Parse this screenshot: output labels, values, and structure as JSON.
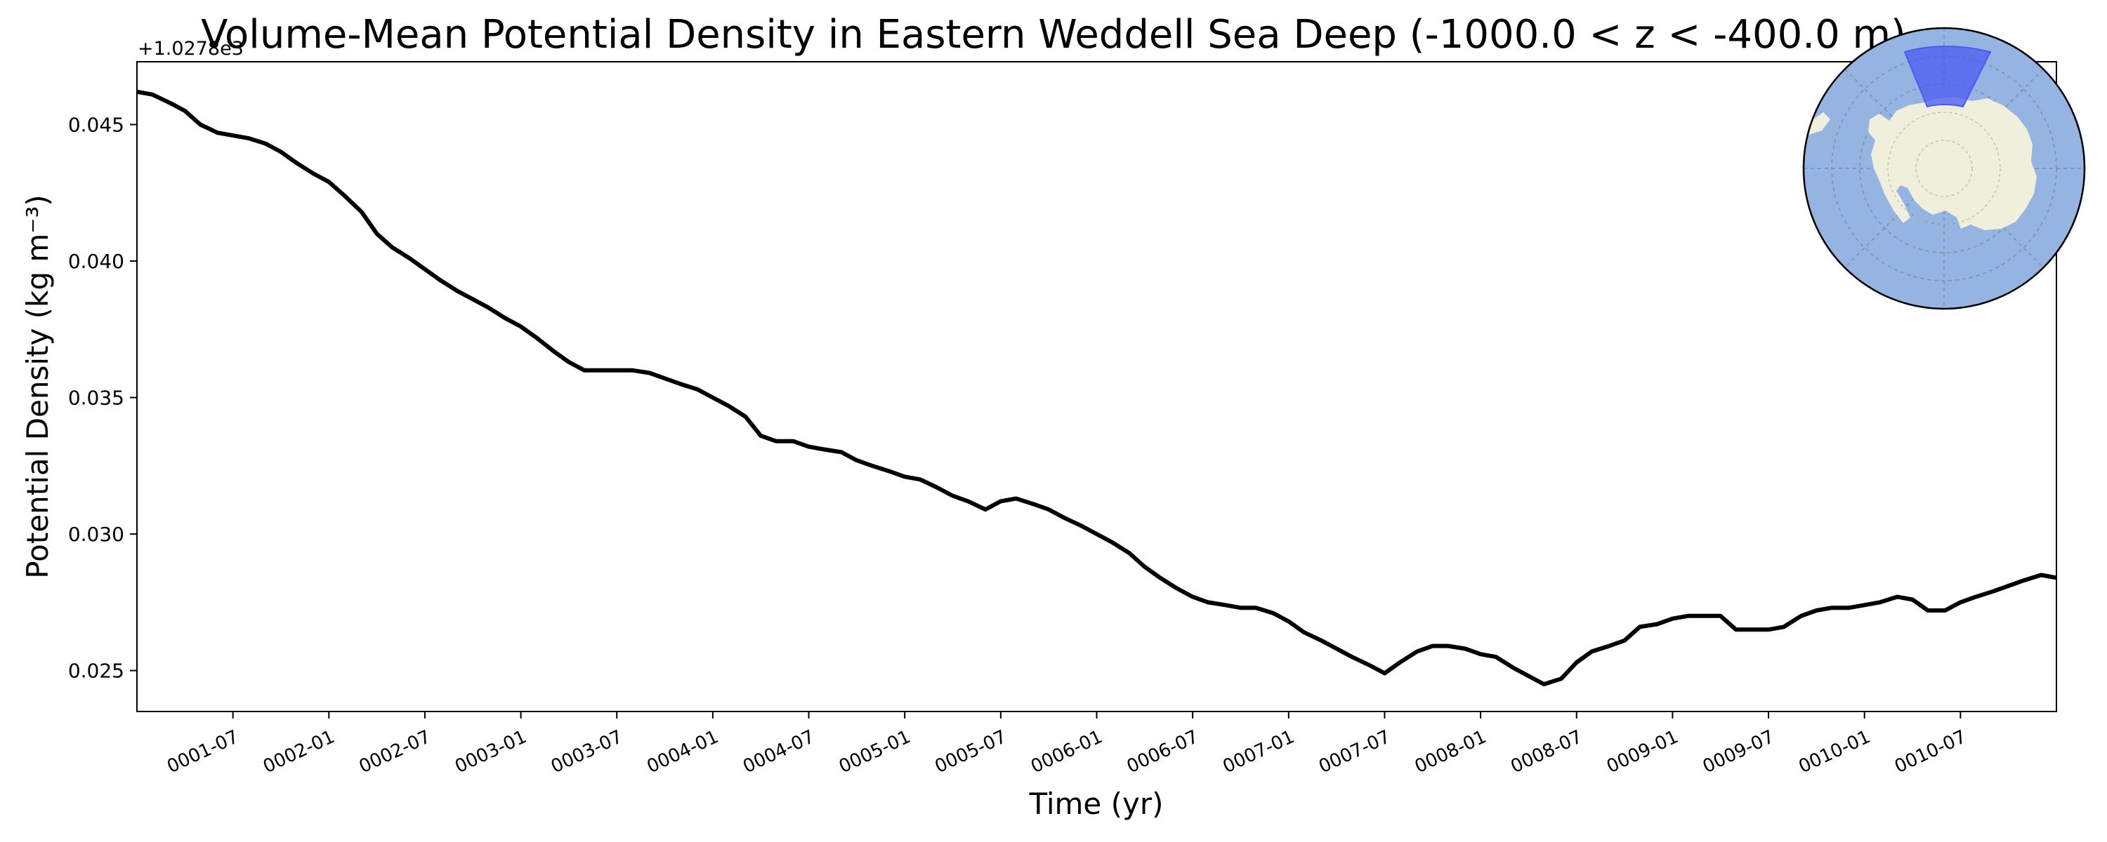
{
  "chart_data": {
    "type": "line",
    "title": "Volume-Mean Potential Density in Eastern Weddell Sea Deep (-1000.0 < z < -400.0 m)",
    "xlabel": "Time (yr)",
    "ylabel": "Potential Density (kg m⁻³)",
    "offset_label": "+1.0278e3",
    "ylim": [
      0.0235,
      0.0473
    ],
    "xlim": [
      0.0,
      10.0
    ],
    "y_ticks": [
      {
        "value": 0.025,
        "label": "0.025"
      },
      {
        "value": 0.03,
        "label": "0.030"
      },
      {
        "value": 0.035,
        "label": "0.035"
      },
      {
        "value": 0.04,
        "label": "0.040"
      },
      {
        "value": 0.045,
        "label": "0.045"
      }
    ],
    "x_ticks": [
      {
        "value": 0.5,
        "label": "0001-07"
      },
      {
        "value": 1.0,
        "label": "0002-01"
      },
      {
        "value": 1.5,
        "label": "0002-07"
      },
      {
        "value": 2.0,
        "label": "0003-01"
      },
      {
        "value": 2.5,
        "label": "0003-07"
      },
      {
        "value": 3.0,
        "label": "0004-01"
      },
      {
        "value": 3.5,
        "label": "0004-07"
      },
      {
        "value": 4.0,
        "label": "0005-01"
      },
      {
        "value": 4.5,
        "label": "0005-07"
      },
      {
        "value": 5.0,
        "label": "0006-01"
      },
      {
        "value": 5.5,
        "label": "0006-07"
      },
      {
        "value": 6.0,
        "label": "0007-01"
      },
      {
        "value": 6.5,
        "label": "0007-07"
      },
      {
        "value": 7.0,
        "label": "0008-01"
      },
      {
        "value": 7.5,
        "label": "0008-07"
      },
      {
        "value": 8.0,
        "label": "0009-01"
      },
      {
        "value": 8.5,
        "label": "0009-07"
      },
      {
        "value": 9.0,
        "label": "0010-01"
      },
      {
        "value": 9.5,
        "label": "0010-07"
      }
    ],
    "series": [
      {
        "name": "volume-mean potential density",
        "color": "#000000",
        "x": [
          0.0,
          0.08,
          0.17,
          0.25,
          0.33,
          0.42,
          0.5,
          0.58,
          0.67,
          0.75,
          0.83,
          0.92,
          1.0,
          1.08,
          1.17,
          1.25,
          1.33,
          1.42,
          1.5,
          1.58,
          1.67,
          1.75,
          1.83,
          1.92,
          2.0,
          2.08,
          2.17,
          2.25,
          2.33,
          2.42,
          2.5,
          2.58,
          2.67,
          2.75,
          2.83,
          2.92,
          3.0,
          3.08,
          3.17,
          3.25,
          3.33,
          3.42,
          3.5,
          3.58,
          3.67,
          3.75,
          3.83,
          3.92,
          4.0,
          4.08,
          4.17,
          4.25,
          4.33,
          4.42,
          4.5,
          4.58,
          4.67,
          4.75,
          4.83,
          4.92,
          5.0,
          5.08,
          5.17,
          5.25,
          5.33,
          5.42,
          5.5,
          5.58,
          5.67,
          5.75,
          5.83,
          5.92,
          6.0,
          6.08,
          6.17,
          6.25,
          6.33,
          6.42,
          6.5,
          6.58,
          6.67,
          6.75,
          6.83,
          6.92,
          7.0,
          7.08,
          7.17,
          7.25,
          7.33,
          7.42,
          7.5,
          7.58,
          7.67,
          7.75,
          7.83,
          7.92,
          8.0,
          8.08,
          8.17,
          8.25,
          8.33,
          8.42,
          8.5,
          8.58,
          8.67,
          8.75,
          8.83,
          8.92,
          9.0,
          9.08,
          9.17,
          9.25,
          9.33,
          9.42,
          9.5,
          9.58,
          9.67,
          9.75,
          9.83,
          9.92,
          10.0
        ],
        "values": [
          0.0462,
          0.0461,
          0.0458,
          0.0455,
          0.045,
          0.0447,
          0.0446,
          0.0445,
          0.0443,
          0.044,
          0.0436,
          0.0432,
          0.0429,
          0.0424,
          0.0418,
          0.041,
          0.0405,
          0.0401,
          0.0397,
          0.0393,
          0.0389,
          0.0386,
          0.0383,
          0.0379,
          0.0376,
          0.0372,
          0.0367,
          0.0363,
          0.036,
          0.036,
          0.036,
          0.036,
          0.0359,
          0.0357,
          0.0355,
          0.0353,
          0.035,
          0.0347,
          0.0343,
          0.0336,
          0.0334,
          0.0334,
          0.0332,
          0.0331,
          0.033,
          0.0327,
          0.0325,
          0.0323,
          0.0321,
          0.032,
          0.0317,
          0.0314,
          0.0312,
          0.0309,
          0.0312,
          0.0313,
          0.0311,
          0.0309,
          0.0306,
          0.0303,
          0.03,
          0.0297,
          0.0293,
          0.0288,
          0.0284,
          0.028,
          0.0277,
          0.0275,
          0.0274,
          0.0273,
          0.0273,
          0.0271,
          0.0268,
          0.0264,
          0.0261,
          0.0258,
          0.0255,
          0.0252,
          0.0249,
          0.0253,
          0.0257,
          0.0259,
          0.0259,
          0.0258,
          0.0256,
          0.0255,
          0.0251,
          0.0248,
          0.0245,
          0.0247,
          0.0253,
          0.0257,
          0.0259,
          0.0261,
          0.0266,
          0.0267,
          0.0269,
          0.027,
          0.027,
          0.027,
          0.0265,
          0.0265,
          0.0265,
          0.0266,
          0.027,
          0.0272,
          0.0273,
          0.0273,
          0.0274,
          0.0275,
          0.0277,
          0.0276,
          0.0272,
          0.0272,
          0.0275,
          0.0277,
          0.0279,
          0.0281,
          0.0283,
          0.0285,
          0.0284
        ]
      }
    ],
    "inset_map": {
      "description_label": "Antarctica region locator",
      "colors": {
        "ocean": "#96b4e2",
        "land": "#f0efdc",
        "highlight": "#4d5cf0",
        "border": "#000000"
      }
    }
  }
}
